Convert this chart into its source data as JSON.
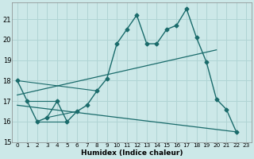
{
  "xlabel": "Humidex (Indice chaleur)",
  "bg_color": "#cce8e8",
  "grid_color": "#b0d4d4",
  "line_color": "#1a6b6b",
  "xlim": [
    -0.5,
    23.5
  ],
  "ylim": [
    15,
    21.8
  ],
  "yticks": [
    15,
    16,
    17,
    18,
    19,
    20,
    21
  ],
  "xticks": [
    0,
    1,
    2,
    3,
    4,
    5,
    6,
    7,
    8,
    9,
    10,
    11,
    12,
    13,
    14,
    15,
    16,
    17,
    18,
    19,
    20,
    21,
    22,
    23
  ],
  "main_x": [
    0,
    1,
    2,
    3,
    4,
    5,
    6,
    7,
    8,
    9,
    10,
    11,
    12,
    13,
    14,
    15,
    16,
    17,
    18,
    19,
    20,
    21,
    22
  ],
  "main_y": [
    18.0,
    17.0,
    16.0,
    16.2,
    17.0,
    16.0,
    16.5,
    16.8,
    17.5,
    18.1,
    19.8,
    20.5,
    21.2,
    19.8,
    19.8,
    20.5,
    20.7,
    21.5,
    20.1,
    18.9,
    17.1,
    16.6,
    15.5
  ],
  "upper_line": {
    "x": [
      0,
      20
    ],
    "y": [
      17.3,
      19.5
    ]
  },
  "lower_line": {
    "x": [
      0,
      22
    ],
    "y": [
      16.8,
      15.5
    ]
  },
  "extra_lines": [
    {
      "x": [
        0,
        8
      ],
      "y": [
        18.0,
        17.5
      ]
    },
    {
      "x": [
        1,
        4
      ],
      "y": [
        17.0,
        17.0
      ]
    },
    {
      "x": [
        2,
        5
      ],
      "y": [
        16.0,
        16.0
      ]
    },
    {
      "x": [
        3,
        6
      ],
      "y": [
        16.2,
        16.5
      ]
    }
  ]
}
